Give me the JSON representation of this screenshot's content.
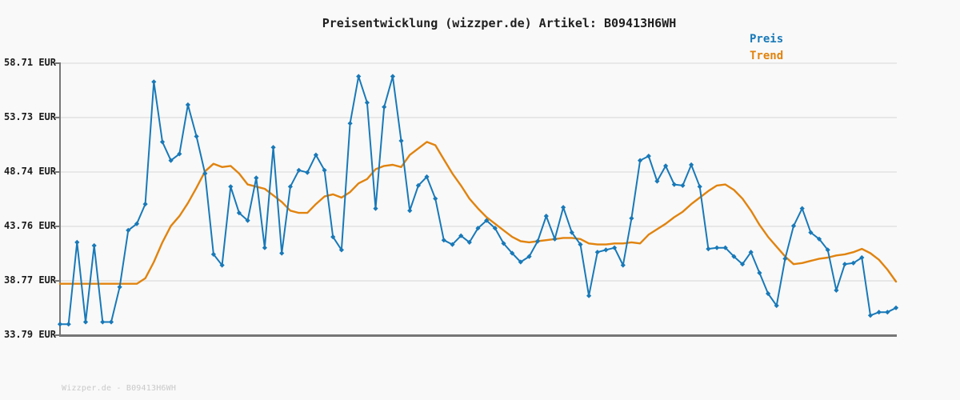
{
  "title": "Preisentwicklung (wizzper.de) Artikel: B09413H6WH",
  "legend": {
    "preis": "Preis",
    "trend": "Trend"
  },
  "footer": "Wizzper.de - B09413H6WH",
  "colors": {
    "preis": "#1879b8",
    "trend": "#e1830e",
    "grid": "#e3e3e3",
    "axis": "#767676",
    "background": "#f9f9f9",
    "title_text": "#1f1f1f",
    "tick_text": "#1a1a1a",
    "footer_text": "#c9c9c9"
  },
  "chart_data": {
    "type": "line",
    "title": "Preisentwicklung (wizzper.de) Artikel: B09413H6WH",
    "xlabel": "",
    "ylabel": "EUR",
    "ylim": [
      33.79,
      58.71
    ],
    "grid": "horizontal",
    "legend_position": "top-right",
    "x_tick_labels_visible": false,
    "yticks": [
      {
        "value": 58.71,
        "label": "58.71 EUR"
      },
      {
        "value": 53.73,
        "label": "53.73 EUR"
      },
      {
        "value": 48.74,
        "label": "48.74 EUR"
      },
      {
        "value": 43.76,
        "label": "43.76 EUR"
      },
      {
        "value": 38.77,
        "label": "38.77 EUR"
      },
      {
        "value": 33.79,
        "label": "33.79 EUR"
      }
    ],
    "series": [
      {
        "name": "Trend",
        "color": "#e1830e",
        "marker": "none",
        "line_width": 2.4,
        "values": [
          38.5,
          38.5,
          38.5,
          38.5,
          38.5,
          38.5,
          38.5,
          38.5,
          38.5,
          38.5,
          39.0,
          40.5,
          42.3,
          43.8,
          44.7,
          45.9,
          47.3,
          48.8,
          49.5,
          49.2,
          49.3,
          48.6,
          47.6,
          47.4,
          47.2,
          46.6,
          46.0,
          45.2,
          45.0,
          45.0,
          45.8,
          46.5,
          46.7,
          46.4,
          46.9,
          47.7,
          48.1,
          49.0,
          49.3,
          49.4,
          49.2,
          50.3,
          50.9,
          51.5,
          51.2,
          49.9,
          48.6,
          47.5,
          46.3,
          45.4,
          44.6,
          44.0,
          43.4,
          42.8,
          42.4,
          42.3,
          42.4,
          42.5,
          42.6,
          42.7,
          42.7,
          42.6,
          42.2,
          42.1,
          42.1,
          42.2,
          42.2,
          42.3,
          42.2,
          43.0,
          43.5,
          44.0,
          44.6,
          45.1,
          45.8,
          46.4,
          47.0,
          47.5,
          47.6,
          47.1,
          46.3,
          45.2,
          43.9,
          42.8,
          41.9,
          41.0,
          40.3,
          40.4,
          40.6,
          40.8,
          40.9,
          41.1,
          41.2,
          41.4,
          41.7,
          41.3,
          40.7,
          39.8,
          38.7
        ]
      },
      {
        "name": "Preis",
        "color": "#1879b8",
        "marker": "diamond",
        "line_width": 2,
        "values": [
          34.8,
          34.8,
          42.3,
          35.0,
          42.0,
          35.0,
          35.0,
          38.2,
          43.4,
          44.0,
          45.8,
          57.0,
          51.5,
          49.8,
          50.4,
          54.9,
          52.0,
          48.6,
          41.2,
          40.2,
          47.4,
          45.0,
          44.3,
          48.2,
          41.8,
          51.0,
          41.3,
          47.4,
          48.9,
          48.7,
          50.3,
          48.9,
          42.8,
          41.6,
          53.2,
          57.5,
          55.1,
          45.4,
          54.7,
          57.5,
          51.6,
          45.2,
          47.5,
          48.3,
          46.3,
          42.5,
          42.1,
          42.9,
          42.3,
          43.6,
          44.3,
          43.6,
          42.2,
          41.3,
          40.5,
          41.0,
          42.4,
          44.7,
          42.6,
          45.5,
          43.2,
          42.1,
          37.4,
          41.4,
          41.6,
          41.8,
          40.2,
          44.5,
          49.8,
          50.2,
          47.9,
          49.3,
          47.6,
          47.5,
          49.4,
          47.4,
          41.7,
          41.8,
          41.8,
          41.0,
          40.3,
          41.4,
          39.5,
          37.6,
          36.5,
          40.8,
          43.8,
          45.4,
          43.2,
          42.6,
          41.6,
          37.9,
          40.3,
          40.4,
          40.9,
          35.6,
          35.9,
          35.9,
          36.3
        ]
      }
    ]
  }
}
